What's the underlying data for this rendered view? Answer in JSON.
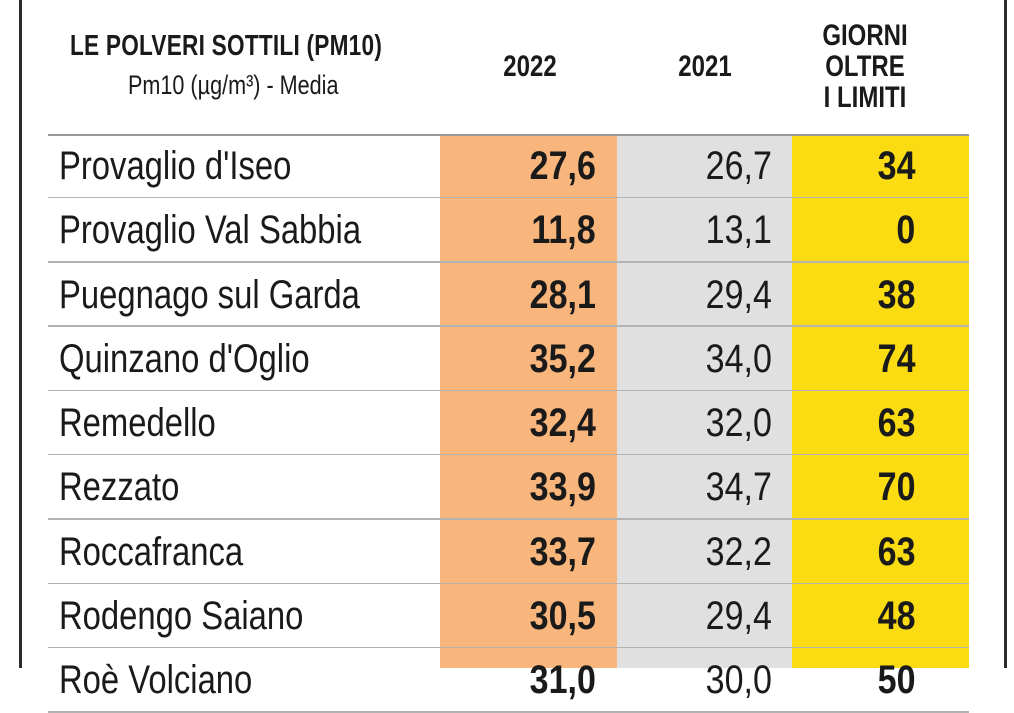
{
  "header": {
    "title": "LE POLVERI SOTTILI (PM10)",
    "subtitle": "Pm10 (µg/m³) - Media",
    "col_2022": "2022",
    "col_2021": "2021",
    "col_days_line1": "GIORNI",
    "col_days_line2": "OLTRE",
    "col_days_line3": "I LIMITI"
  },
  "colors": {
    "col_2022_bg": "#f8b57c",
    "col_2021_bg": "#e0e0e0",
    "col_days_bg": "#fbdb12"
  },
  "rows": [
    {
      "name": "Provaglio d'Iseo",
      "v2022": "27,6",
      "v2021": "26,7",
      "days": "34"
    },
    {
      "name": "Provaglio Val Sabbia",
      "v2022": "11,8",
      "v2021": "13,1",
      "days": "0"
    },
    {
      "name": "Puegnago sul Garda",
      "v2022": "28,1",
      "v2021": "29,4",
      "days": "38"
    },
    {
      "name": "Quinzano d'Oglio",
      "v2022": "35,2",
      "v2021": "34,0",
      "days": "74"
    },
    {
      "name": "Remedello",
      "v2022": "32,4",
      "v2021": "32,0",
      "days": "63"
    },
    {
      "name": "Rezzato",
      "v2022": "33,9",
      "v2021": "34,7",
      "days": "70"
    },
    {
      "name": "Roccafranca",
      "v2022": "33,7",
      "v2021": "32,2",
      "days": "63"
    },
    {
      "name": "Rodengo Saiano",
      "v2022": "30,5",
      "v2021": "29,4",
      "days": "48"
    },
    {
      "name": "Roè Volciano",
      "v2022": "31,0",
      "v2021": "30,0",
      "days": "50"
    }
  ]
}
